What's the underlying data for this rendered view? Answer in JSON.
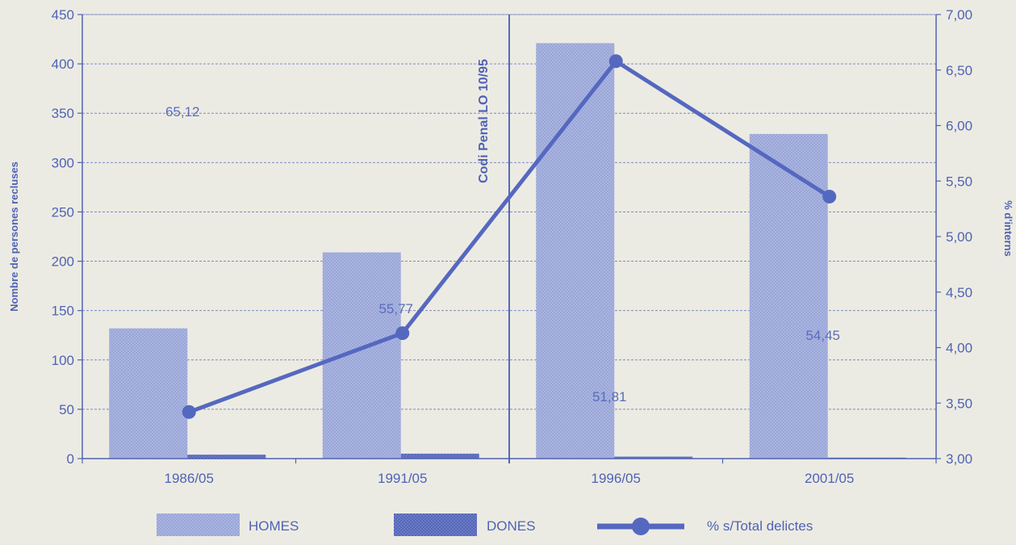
{
  "chart_data": {
    "type": "bar",
    "categories": [
      "1986/05",
      "1991/05",
      "1996/05",
      "2001/05"
    ],
    "series": [
      {
        "name": "HOMES",
        "type": "bar",
        "axis": "left",
        "values": [
          132,
          209,
          421,
          329
        ]
      },
      {
        "name": "DONES",
        "type": "bar",
        "axis": "left",
        "values": [
          4,
          5,
          2,
          1
        ]
      },
      {
        "name": "% s/Total delictes",
        "type": "line",
        "axis": "right",
        "values": [
          3.42,
          4.13,
          6.58,
          5.36
        ]
      }
    ],
    "ylabel": "Nombre de persones recluses",
    "y2label": "% d'interns",
    "ylim": [
      0,
      450
    ],
    "y2lim": [
      3.0,
      7.0
    ],
    "yticks": [
      "0",
      "50",
      "100",
      "150",
      "200",
      "250",
      "300",
      "350",
      "400",
      "450"
    ],
    "y2ticks": [
      "3,00",
      "3,50",
      "4,00",
      "4,50",
      "5,00",
      "5,50",
      "6,00",
      "6,50",
      "7,00"
    ],
    "annotations": [
      {
        "text": "65,12",
        "category": "1986/05",
        "y": 352
      },
      {
        "text": "55,77",
        "category": "1991/05",
        "y": 152
      },
      {
        "text": "51,81",
        "category": "1996/05",
        "y": 63
      },
      {
        "text": "54,45",
        "category": "2001/05",
        "y": 125
      }
    ],
    "vline": {
      "label": "Codi Penal LO 10/95",
      "between": [
        "1991/05",
        "1996/05"
      ]
    },
    "legend_position": "bottom",
    "grid": true,
    "colors": {
      "homes": "#a9b4df",
      "dones": "#5f72c0",
      "line": "#5568c0",
      "axis": "#4f63b5",
      "text": "#4f63b5",
      "grid": "#7f8ac0",
      "background": "#ecebe3"
    }
  }
}
